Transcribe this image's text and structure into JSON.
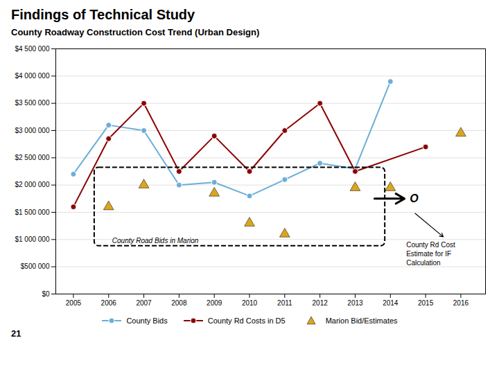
{
  "chart_data": {
    "type": "line",
    "title": "County Roadway Construction Cost Trend (Urban Design)",
    "annotations": [
      "Findings of Technical Study",
      "County Road Bids in Marion",
      "O",
      "County Rd Cost\nEstimate for IF\nCalculation",
      "21"
    ],
    "xlim": [
      2004.5,
      2016.7
    ],
    "xticks": [
      2005,
      2006,
      2007,
      2008,
      2009,
      2010,
      2011,
      2012,
      2013,
      2014,
      2015,
      2016
    ],
    "ylim": [
      0,
      4500000
    ],
    "yticks": [
      {
        "value": 0,
        "label": "$0"
      },
      {
        "value": 500000,
        "label": "$500 000"
      },
      {
        "value": 1000000,
        "label": "$1 000 000"
      },
      {
        "value": 1500000,
        "label": "$1 500 000"
      },
      {
        "value": 2000000,
        "label": "$2 000 000"
      },
      {
        "value": 2500000,
        "label": "$2 500 000"
      },
      {
        "value": 3000000,
        "label": "$3 000 000"
      },
      {
        "value": 3500000,
        "label": "$3 500 000"
      },
      {
        "value": 4000000,
        "label": "$4 000 000"
      },
      {
        "value": 4500000,
        "label": "$4 500 000"
      }
    ],
    "grid": "y",
    "legend": "bottom",
    "series": [
      {
        "name": "County Bids",
        "color": "#6BAED6",
        "type": "line",
        "marker": "circle",
        "x": [
          2005,
          2006,
          2007,
          2008,
          2009,
          2010,
          2011,
          2012,
          2013,
          2014
        ],
        "values": [
          2200000,
          3100000,
          3000000,
          2000000,
          2050000,
          1800000,
          2100000,
          2400000,
          2300000,
          3900000
        ]
      },
      {
        "name": "County Rd Costs in D5",
        "color": "#8B0000",
        "type": "line",
        "marker": "circle",
        "x": [
          2005,
          2006,
          2007,
          2008,
          2009,
          2010,
          2011,
          2012,
          2013,
          2015
        ],
        "values": [
          1600000,
          2850000,
          3500000,
          2250000,
          2900000,
          2250000,
          3000000,
          3500000,
          2250000,
          2700000
        ]
      },
      {
        "name": "Marion Bid/Estimates",
        "color": "#DAA520",
        "type": "scatter",
        "marker": "triangle",
        "x": [
          2006,
          2007,
          2009,
          2010,
          2011,
          2013,
          2014,
          2016
        ],
        "values": [
          1600000,
          2000000,
          1850000,
          1300000,
          1100000,
          1950000,
          1950000,
          2950000
        ]
      }
    ]
  }
}
